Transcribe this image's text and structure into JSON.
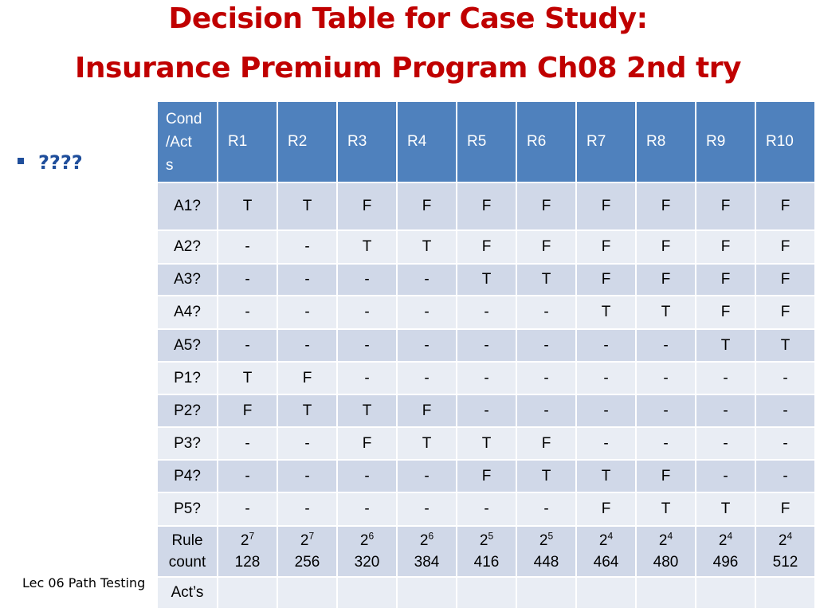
{
  "title": {
    "line1": "Decision Table for Case Study:",
    "line2": "Insurance Premium Program Ch08 2nd try"
  },
  "bullet": {
    "text": "????"
  },
  "footer": {
    "text": "Lec 06 Path Testing"
  },
  "table": {
    "corner_label": "Cond\n/Act\ns",
    "columns": [
      "R1",
      "R2",
      "R3",
      "R4",
      "R5",
      "R6",
      "R7",
      "R8",
      "R9",
      "R10"
    ],
    "rows": [
      {
        "label": "A1?",
        "cells": [
          "T",
          "T",
          "F",
          "F",
          "F",
          "F",
          "F",
          "F",
          "F",
          "F"
        ]
      },
      {
        "label": "A2?",
        "cells": [
          "-",
          "-",
          "T",
          "T",
          "F",
          "F",
          "F",
          "F",
          "F",
          "F"
        ]
      },
      {
        "label": "A3?",
        "cells": [
          "-",
          "-",
          "-",
          "-",
          "T",
          "T",
          "F",
          "F",
          "F",
          "F"
        ]
      },
      {
        "label": "A4?",
        "cells": [
          "-",
          "-",
          "-",
          "-",
          "-",
          "-",
          "T",
          "T",
          "F",
          "F"
        ]
      },
      {
        "label": "A5?",
        "cells": [
          "-",
          "-",
          "-",
          "-",
          "-",
          "-",
          "-",
          "-",
          "T",
          "T"
        ]
      },
      {
        "label": "P1?",
        "cells": [
          "T",
          "F",
          "-",
          "-",
          "-",
          "-",
          "-",
          "-",
          "-",
          "-"
        ]
      },
      {
        "label": "P2?",
        "cells": [
          "F",
          "T",
          "T",
          "F",
          "-",
          "-",
          "-",
          "-",
          "-",
          "-"
        ]
      },
      {
        "label": "P3?",
        "cells": [
          "-",
          "-",
          "F",
          "T",
          "T",
          "F",
          "-",
          "-",
          "-",
          "-"
        ]
      },
      {
        "label": "P4?",
        "cells": [
          "-",
          "-",
          "-",
          "-",
          "F",
          "T",
          "T",
          "F",
          "-",
          "-"
        ]
      },
      {
        "label": "P5?",
        "cells": [
          "-",
          "-",
          "-",
          "-",
          "-",
          "-",
          "F",
          "T",
          "T",
          "F"
        ]
      }
    ],
    "rule_count": {
      "label": "Rule count",
      "cells": [
        {
          "base": "2",
          "exp": "7",
          "cum": "128"
        },
        {
          "base": "2",
          "exp": "7",
          "cum": "256"
        },
        {
          "base": "2",
          "exp": "6",
          "cum": "320"
        },
        {
          "base": "2",
          "exp": "6",
          "cum": "384"
        },
        {
          "base": "2",
          "exp": "5",
          "cum": "416"
        },
        {
          "base": "2",
          "exp": "5",
          "cum": "448"
        },
        {
          "base": "2",
          "exp": "4",
          "cum": "464"
        },
        {
          "base": "2",
          "exp": "4",
          "cum": "480"
        },
        {
          "base": "2",
          "exp": "4",
          "cum": "496"
        },
        {
          "base": "2",
          "exp": "4",
          "cum": "512"
        }
      ]
    },
    "acts": {
      "label": "Act’s",
      "cells": [
        "",
        "",
        "",
        "",
        "",
        "",
        "",
        "",
        "",
        ""
      ]
    }
  }
}
